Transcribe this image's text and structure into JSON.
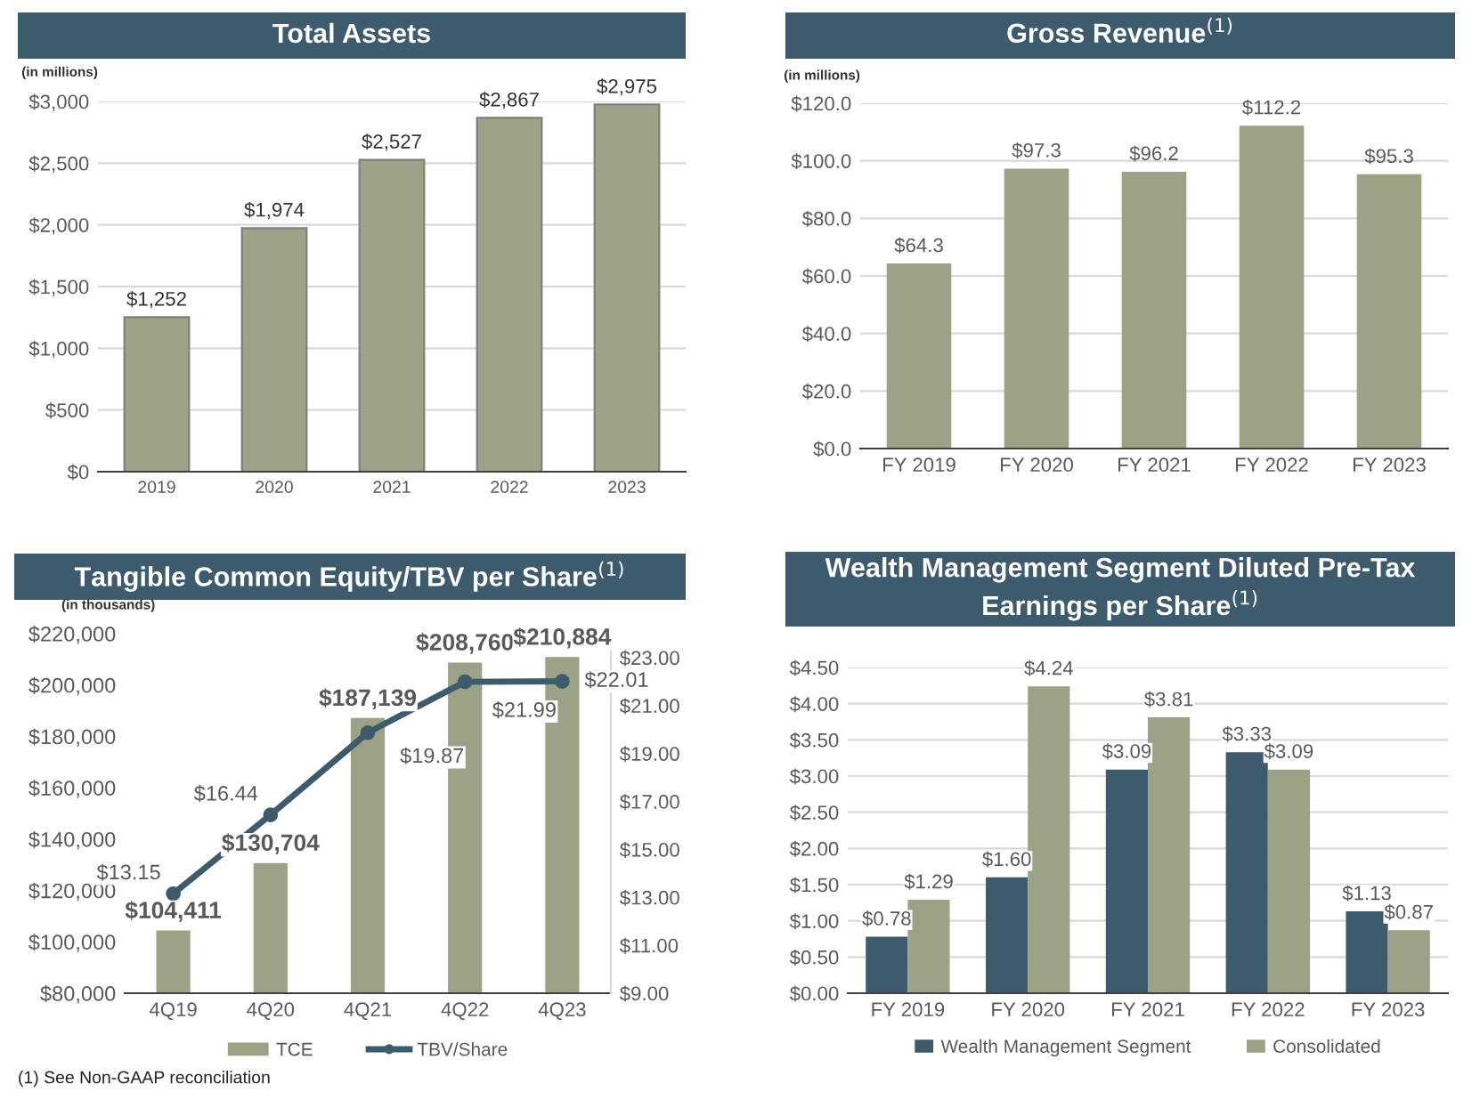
{
  "chart_data": [
    {
      "type": "bar",
      "title": "Total Assets",
      "ylabel": "(in millions)",
      "categories": [
        "2019",
        "2020",
        "2021",
        "2022",
        "2023"
      ],
      "series": [
        {
          "color": "#9ea387",
          "values": [
            1252,
            1974,
            2527,
            2867,
            2975
          ],
          "value_labels": [
            "$1,252",
            "$1,974",
            "$2,527",
            "$2,867",
            "$2,975"
          ]
        }
      ],
      "ylim": [
        0,
        3000
      ],
      "yticks": [
        {
          "value": 0,
          "label": "$0"
        },
        {
          "value": 500,
          "label": "$500"
        },
        {
          "value": 1000,
          "label": "$1,000"
        },
        {
          "value": 1500,
          "label": "$1,500"
        },
        {
          "value": 2000,
          "label": "$2,000"
        },
        {
          "value": 2500,
          "label": "$2,500"
        },
        {
          "value": 3000,
          "label": "$3,000"
        }
      ],
      "grid": "y",
      "legend": false
    },
    {
      "type": "bar",
      "title": "Gross Revenue$^{(1)}$",
      "ylabel": "(in millions)",
      "categories": [
        "FY 2019",
        "FY 2020",
        "FY 2021",
        "FY 2022",
        "FY 2023"
      ],
      "series": [
        {
          "color": "#9ca286",
          "values": [
            64.3,
            97.3,
            96.2,
            112.2,
            95.3
          ],
          "value_labels": [
            "$64.3",
            "$97.3",
            "$96.2",
            "$112.2",
            "$95.3"
          ]
        }
      ],
      "ylim": [
        0,
        120
      ],
      "yticks": [
        {
          "value": 0,
          "label": "$0.0"
        },
        {
          "value": 20,
          "label": "$20.0"
        },
        {
          "value": 40,
          "label": "$40.0"
        },
        {
          "value": 60,
          "label": "$60.0"
        },
        {
          "value": 80,
          "label": "$80.0"
        },
        {
          "value": 100,
          "label": "$100.0"
        },
        {
          "value": 120,
          "label": "$120.0"
        }
      ],
      "grid": "y",
      "legend": false
    },
    {
      "type": "bar",
      "title": "Tangible Common Equity/TBV per Share$^{(1)}$",
      "ylabel": "(in thousands)",
      "categories": [
        "4Q19",
        "4Q20",
        "4Q21",
        "4Q22",
        "4Q23"
      ],
      "series": [
        {
          "name": "TCE",
          "color": "#9ca286",
          "values": [
            104411,
            130704,
            187139,
            208760,
            210884
          ],
          "value_labels": [
            "$104,411",
            "$130,704",
            "$187,139",
            "$208,760",
            "$210,884"
          ]
        },
        {
          "name": "TBV/Share",
          "type": "line",
          "axis": "y2",
          "marker": "circle",
          "color": "#3e5b6e",
          "values": [
            13.15,
            16.44,
            19.87,
            21.99,
            22.01
          ],
          "value_labels": [
            "$13.15",
            "$16.44",
            "$19.87",
            "$21.99",
            "$22.01"
          ]
        }
      ],
      "ylim": [
        80000,
        220000
      ],
      "yticks": [
        {
          "value": 80000,
          "label": "$80,000"
        },
        {
          "value": 100000,
          "label": "$100,000"
        },
        {
          "value": 120000,
          "label": "$120,000"
        },
        {
          "value": 140000,
          "label": "$140,000"
        },
        {
          "value": 160000,
          "label": "$160,000"
        },
        {
          "value": 180000,
          "label": "$180,000"
        },
        {
          "value": 200000,
          "label": "$200,000"
        },
        {
          "value": 220000,
          "label": "$220,000"
        }
      ],
      "y2lim": [
        9,
        24
      ],
      "y2ticks": [
        {
          "value": 9,
          "label": "$9.00"
        },
        {
          "value": 11,
          "label": "$11.00"
        },
        {
          "value": 13,
          "label": "$13.00"
        },
        {
          "value": 15,
          "label": "$15.00"
        },
        {
          "value": 17,
          "label": "$17.00"
        },
        {
          "value": 19,
          "label": "$19.00"
        },
        {
          "value": 21,
          "label": "$21.00"
        },
        {
          "value": 23,
          "label": "$23.00"
        }
      ],
      "grid": false,
      "legend": "bottom",
      "annotations": [
        "(1) See Non-GAAP reconciliation"
      ]
    },
    {
      "type": "bar",
      "title": "Wealth Management Segment Diluted Pre-Tax Earnings per Share$^{(1)}$",
      "categories": [
        "FY 2019",
        "FY 2020",
        "FY 2021",
        "FY 2022",
        "FY 2023"
      ],
      "series": [
        {
          "name": "Wealth Management Segment",
          "color": "#3e5b6e",
          "values": [
            0.78,
            1.6,
            3.09,
            3.33,
            1.13
          ],
          "value_labels": [
            "$0.78",
            "$1.60",
            "$3.09",
            "$3.33",
            "$1.13"
          ]
        },
        {
          "name": "Consolidated",
          "color": "#9ca286",
          "values": [
            1.29,
            4.24,
            3.81,
            3.09,
            0.87
          ],
          "value_labels": [
            "$1.29",
            "$4.24",
            "$3.81",
            "$3.09",
            "$0.87"
          ]
        }
      ],
      "ylim": [
        0,
        4.5
      ],
      "yticks": [
        {
          "value": 0,
          "label": "$0.00"
        },
        {
          "value": 0.5,
          "label": "$0.50"
        },
        {
          "value": 1,
          "label": "$1.00"
        },
        {
          "value": 1.5,
          "label": "$1.50"
        },
        {
          "value": 2,
          "label": "$2.00"
        },
        {
          "value": 2.5,
          "label": "$2.50"
        },
        {
          "value": 3,
          "label": "$3.00"
        },
        {
          "value": 3.5,
          "label": "$3.50"
        },
        {
          "value": 4,
          "label": "$4.00"
        },
        {
          "value": 4.5,
          "label": "$4.50"
        }
      ],
      "grid": "y",
      "legend": "bottom"
    }
  ]
}
